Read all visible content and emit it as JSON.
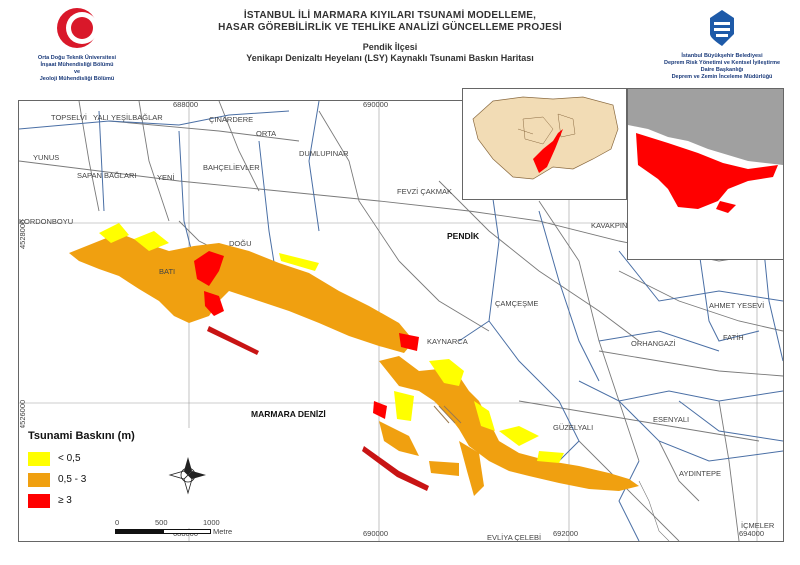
{
  "header": {
    "title_line1": "İSTANBUL İLİ MARMARA KIYILARI TSUNAMİ MODELLEME,",
    "title_line2": "HASAR GÖREBİLİRLİK VE TEHLİKE ANALİZİ GÜNCELLEME PROJESİ",
    "district": "Pendik İlçesi",
    "map_title": "Yenikapı Denizaltı Heyelanı (LSY) Kaynaklı Tsunami Baskın Haritası",
    "left_org_line1": "Orta Doğu Teknik Üniversitesi",
    "left_org_line2": "İnşaat Mühendisliği Bölümü",
    "left_org_line3": "ve",
    "left_org_line4": "Jeoloji Mühendisliği Bölümü",
    "right_org_line1": "İstanbul Büyükşehir Belediyesi",
    "right_org_line2": "Deprem Risk Yönetimi ve Kentsel İyileştirme",
    "right_org_line3": "Daire Başkanlığı",
    "right_org_line4": "Deprem ve Zemin İnceleme Müdürlüğü"
  },
  "axes": {
    "x_top": [
      "688000",
      "690000"
    ],
    "x_bottom": [
      "688000",
      "690000",
      "692000",
      "694000"
    ],
    "y": [
      "4528000",
      "4526000"
    ]
  },
  "places": {
    "topselvi": "TOPSELVİ",
    "yali": "YALI",
    "yesilbaglar": "YEŞİLBAĞLAR",
    "cinardere": "ÇINARDERE",
    "orta": "ORTA",
    "yunus": "YUNUS",
    "dumlupinar": "DUMLUPINAR",
    "bahcelievler": "BAHÇELİEVLER",
    "sapan_baglari": "SAPAN BAĞLARI",
    "yeni": "YENİ",
    "fevzi_cakmak": "FEVZİ ÇAKMAK",
    "kavakpinar": "KAVAKPIN",
    "kordonboyu": "KORDONBOYU",
    "pendik": "PENDİK",
    "dogu": "DOĞU",
    "bati": "BATI",
    "camcesme": "ÇAMÇEŞME",
    "ahmet_yesevi": "AHMET YESEVİ",
    "fatih": "FATİH",
    "orhangazi": "ORHANGAZİ",
    "kaynarca": "KAYNARCA",
    "marmara_denizi": "MARMARA DENİZİ",
    "esenyali": "ESENYALI",
    "guzelyali": "GÜZELYALI",
    "aydintepe": "AYDINTEPE",
    "evliya_celebi": "EVLİYA ÇELEBİ",
    "icmeler": "İÇMELER"
  },
  "legend": {
    "title": "Tsunami Baskını (m)",
    "items": [
      {
        "label": "< 0,5",
        "color": "#ffff00"
      },
      {
        "label": "0,5 - 3",
        "color": "#f0a010"
      },
      {
        "label": "≥  3",
        "color": "#ff0000"
      }
    ]
  },
  "scalebar": {
    "labels": [
      "0",
      "500",
      "1000"
    ],
    "unit": "Metre"
  },
  "colors": {
    "inundation_low": "#ffff00",
    "inundation_mid": "#f0a010",
    "inundation_high": "#ff0000",
    "roads": "#7a7a7a",
    "boundaries": "#4a6fa5",
    "inset_land": "#f2dcb5",
    "inset_dark": "#a0a0a0"
  }
}
